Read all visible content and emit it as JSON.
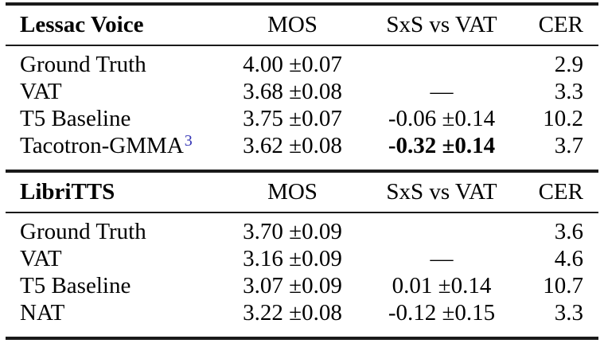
{
  "page": {
    "background_color": "#ffffff",
    "text_color": "#000000",
    "footnote_link_color": "#3535b5"
  },
  "table": {
    "sections": [
      {
        "header": {
          "dataset": "Lessac Voice",
          "col_mos": "MOS",
          "col_sxs": "SxS vs VAT",
          "col_cer": "CER"
        },
        "rows": [
          {
            "model": "Ground Truth",
            "mos": "4.00 ±0.07",
            "sxs": "",
            "cer": "2.9"
          },
          {
            "model": "VAT",
            "mos": "3.68 ±0.08",
            "sxs": "—",
            "cer": "3.3"
          },
          {
            "model": "T5 Baseline",
            "mos": "3.75 ±0.07",
            "sxs": "-0.06 ±0.14",
            "cer": "10.2"
          },
          {
            "model": "Tacotron-GMMA",
            "footnote": "3",
            "mos": "3.62 ±0.08",
            "sxs": "-0.32 ±0.14",
            "cer": "3.7"
          }
        ]
      },
      {
        "header": {
          "dataset": "LibriTTS",
          "col_mos": "MOS",
          "col_sxs": "SxS vs VAT",
          "col_cer": "CER"
        },
        "rows": [
          {
            "model": "Ground Truth",
            "mos": "3.70 ±0.09",
            "sxs": "",
            "cer": "3.6"
          },
          {
            "model": "VAT",
            "mos": "3.16 ±0.09",
            "sxs": "—",
            "cer": "4.6"
          },
          {
            "model": "T5 Baseline",
            "mos": "3.07 ±0.09",
            "sxs": "0.01 ±0.14",
            "cer": "10.7"
          },
          {
            "model": "NAT",
            "mos": "3.22 ±0.08",
            "sxs": "-0.12 ±0.15",
            "cer": "3.3"
          }
        ]
      }
    ]
  }
}
